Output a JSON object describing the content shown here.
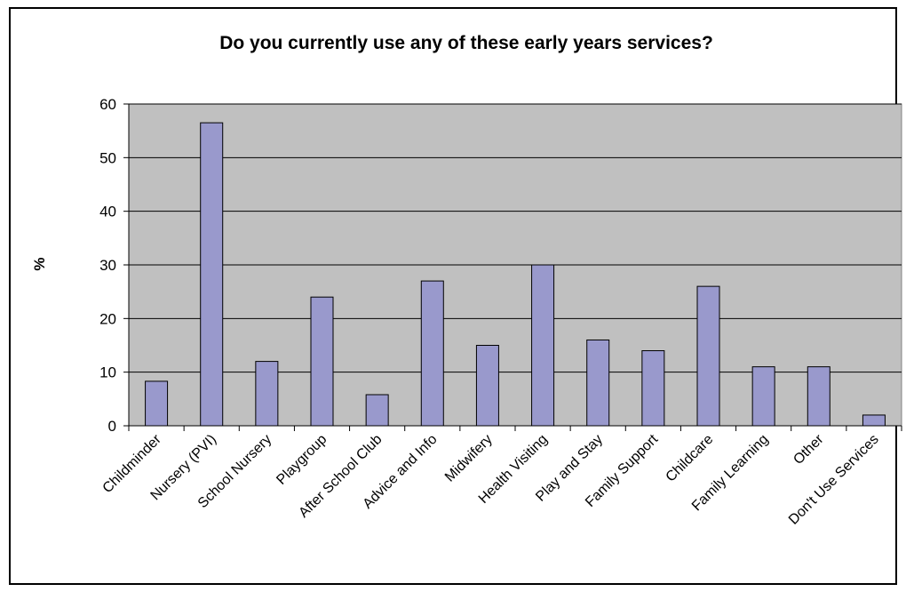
{
  "chart_data": {
    "type": "bar",
    "title": "Do you currently use any of these early years services?",
    "xlabel": "",
    "ylabel": "%",
    "ylim": [
      0,
      60
    ],
    "yticks": [
      0,
      10,
      20,
      30,
      40,
      50,
      60
    ],
    "grid": true,
    "legend": "none",
    "categories": [
      "Childminder",
      "Nursery (PVI)",
      "School Nursery",
      "Playgroup",
      "After School Club",
      "Advice and Info",
      "Midwifery",
      "Health Visiting",
      "Play and Stay",
      "Family Support",
      "Childcare",
      "Family Learning",
      "Other",
      "Don't Use Services"
    ],
    "values": [
      8.3,
      56.5,
      12,
      24,
      5.8,
      27,
      15,
      30,
      16,
      14,
      26,
      11,
      11,
      2
    ],
    "bar_color": "#9999cc",
    "plot_background": "#c0c0c0"
  }
}
